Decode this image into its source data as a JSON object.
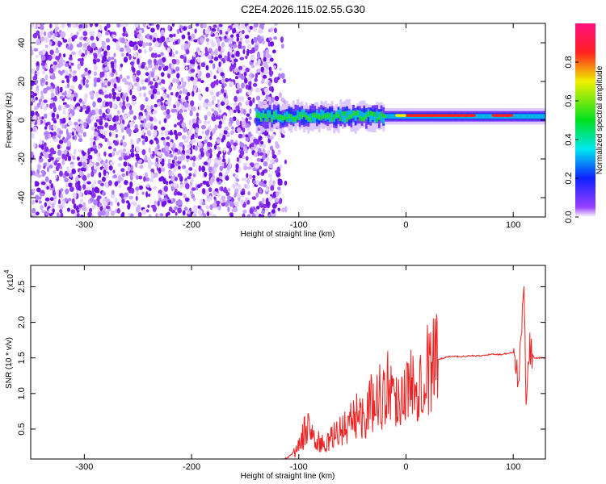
{
  "chart_data": [
    {
      "type": "heatmap",
      "title": "C2E4.2026.115.02.55.G30",
      "xlabel": "Height of straight line (km)",
      "ylabel": "Frequency (Hz)",
      "xlim": [
        -350,
        130
      ],
      "ylim": [
        -50,
        50
      ],
      "xticks": [
        "-300",
        "-200",
        "-100",
        "0",
        "100"
      ],
      "xtick_values": [
        -300,
        -200,
        -100,
        0,
        100
      ],
      "yticks": [
        "-40",
        "-20",
        "0",
        "20",
        "40"
      ],
      "ytick_values": [
        -40,
        -20,
        0,
        20,
        40
      ],
      "colorbar": {
        "label": "Normalized spectral amplitude",
        "range": [
          0,
          1
        ],
        "ticks": [
          "0.0",
          "0.2",
          "0.4",
          "0.6",
          "0.8"
        ],
        "tick_values": [
          0,
          0.2,
          0.4,
          0.6,
          0.8
        ]
      },
      "description_regions": {
        "noise_range": [
          -350,
          -125
        ],
        "signal_band_center_hz": 2
      }
    },
    {
      "type": "line",
      "xlabel": "Height of straight line (km)",
      "ylabel": "SNR (10 * v/v)",
      "yscale_label": "(x10",
      "yscale_exp": "4",
      "xlim": [
        -350,
        130
      ],
      "ylim": [
        0.08,
        2.8
      ],
      "xticks": [
        "-300",
        "-200",
        "-100",
        "0",
        "100"
      ],
      "xtick_values": [
        -300,
        -200,
        -100,
        0,
        100
      ],
      "yticks": [
        "0.5",
        "1.0",
        "1.5",
        "2.0",
        "2.5"
      ],
      "ytick_values": [
        0.5,
        1.0,
        1.5,
        2.0,
        2.5
      ],
      "color": "#ee2222",
      "series": [
        {
          "name": "SNR",
          "x": [
            -350,
            -300,
            -250,
            -200,
            -150,
            -120,
            -110,
            -100,
            -95,
            -90,
            -85,
            -80,
            -75,
            -70,
            -65,
            -60,
            -55,
            -50,
            -45,
            -40,
            -35,
            -30,
            -25,
            -20,
            -15,
            -10,
            -5,
            0,
            5,
            10,
            15,
            20,
            25,
            30,
            35,
            40,
            50,
            60,
            70,
            80,
            90,
            100,
            105,
            108,
            110,
            112,
            115,
            120,
            130
          ],
          "y": [
            0.05,
            0.05,
            0.05,
            0.06,
            0.05,
            0.05,
            0.1,
            0.25,
            0.45,
            0.55,
            0.35,
            0.3,
            0.28,
            0.35,
            0.45,
            0.5,
            0.55,
            0.6,
            0.75,
            0.65,
            0.8,
            0.9,
            1.0,
            0.95,
            1.2,
            0.9,
            1.0,
            1.05,
            1.1,
            1.2,
            1.3,
            1.35,
            1.45,
            1.48,
            1.5,
            1.52,
            1.52,
            1.53,
            1.53,
            1.55,
            1.55,
            1.58,
            1.2,
            2.1,
            2.8,
            1.0,
            1.6,
            1.5,
            1.5
          ]
        }
      ]
    }
  ]
}
